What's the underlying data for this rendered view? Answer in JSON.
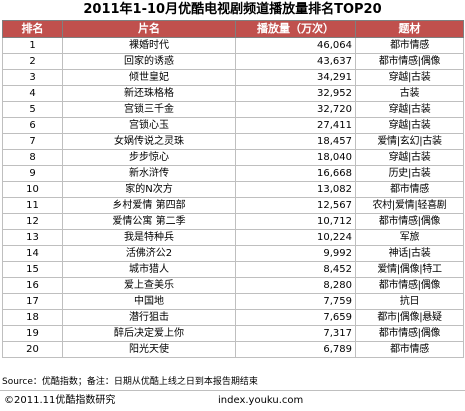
{
  "title": "2011年1-10月优酷电视剧频道播放量排名TOP20",
  "headers": {
    "rank": "排名",
    "name": "片名",
    "plays": "播放量（万次）",
    "genre": "题材"
  },
  "rows": [
    {
      "rank": "1",
      "name": "裸婚时代",
      "plays": "46,064",
      "genre": "都市情感"
    },
    {
      "rank": "2",
      "name": "回家的诱惑",
      "plays": "43,637",
      "genre": "都市情感|偶像"
    },
    {
      "rank": "3",
      "name": "倾世皇妃",
      "plays": "34,291",
      "genre": "穿越|古装"
    },
    {
      "rank": "4",
      "name": "新还珠格格",
      "plays": "32,952",
      "genre": "古装"
    },
    {
      "rank": "5",
      "name": "宫锁三千金",
      "plays": "32,720",
      "genre": "穿越|古装"
    },
    {
      "rank": "6",
      "name": "宫锁心玉",
      "plays": "27,411",
      "genre": "穿越|古装"
    },
    {
      "rank": "7",
      "name": "女娲传说之灵珠",
      "plays": "18,457",
      "genre": "爱情|玄幻|古装"
    },
    {
      "rank": "8",
      "name": "步步惊心",
      "plays": "18,040",
      "genre": "穿越|古装"
    },
    {
      "rank": "9",
      "name": "新水浒传",
      "plays": "16,668",
      "genre": "历史|古装"
    },
    {
      "rank": "10",
      "name": "家的N次方",
      "plays": "13,082",
      "genre": "都市情感"
    },
    {
      "rank": "11",
      "name": "乡村爱情 第四部",
      "plays": "12,567",
      "genre": "农村|爱情|轻喜剧"
    },
    {
      "rank": "12",
      "name": "爱情公寓 第二季",
      "plays": "10,712",
      "genre": "都市情感|偶像"
    },
    {
      "rank": "13",
      "name": "我是特种兵",
      "plays": "10,224",
      "genre": "军旅"
    },
    {
      "rank": "14",
      "name": "活佛济公2",
      "plays": "9,992",
      "genre": "神话|古装"
    },
    {
      "rank": "15",
      "name": "城市猎人",
      "plays": "8,452",
      "genre": "爱情|偶像|特工"
    },
    {
      "rank": "16",
      "name": "爱上查美乐",
      "plays": "8,280",
      "genre": "都市情感|偶像"
    },
    {
      "rank": "17",
      "name": "中国地",
      "plays": "7,759",
      "genre": "抗日"
    },
    {
      "rank": "18",
      "name": "潜行狙击",
      "plays": "7,659",
      "genre": "都市|偶像|悬疑"
    },
    {
      "rank": "19",
      "name": "醉后决定爱上你",
      "plays": "7,317",
      "genre": "都市情感|偶像"
    },
    {
      "rank": "20",
      "name": "阳光天使",
      "plays": "6,789",
      "genre": "都市情感"
    }
  ],
  "source": "Source：优酷指数；备注：日期从优酷上线之日到本报告期结束",
  "footer": {
    "copyright": "©2011.11优酷指数研究",
    "site": "index.youku.com"
  },
  "colors": {
    "header_bg": "#c0504d",
    "header_text": "#ffffff"
  }
}
